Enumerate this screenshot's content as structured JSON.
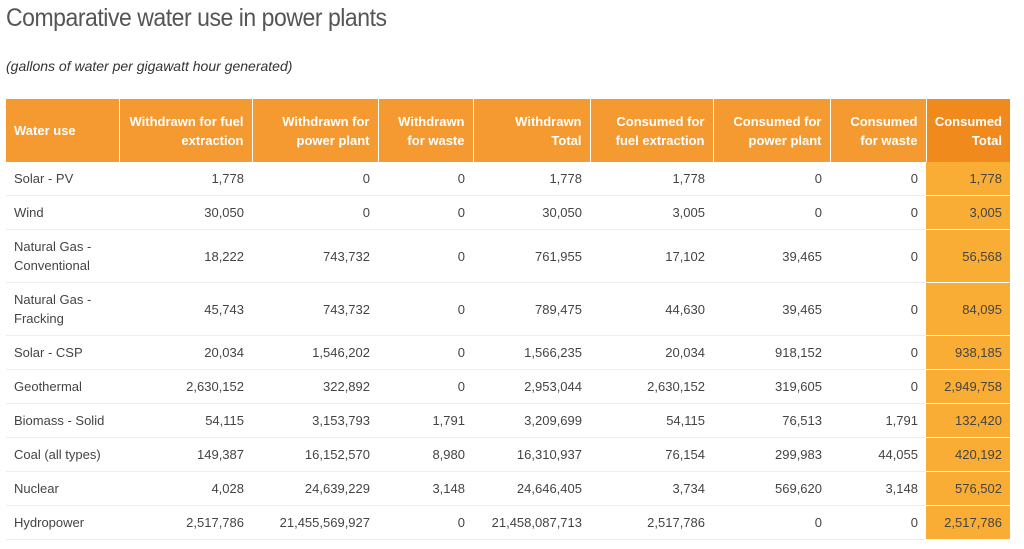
{
  "title": "Comparative water use in power plants",
  "subtitle": "(gallons of water per gigawatt hour generated)",
  "chart_data": {
    "type": "table",
    "columns": [
      "Water use",
      "Withdrawn for fuel extraction",
      "Withdrawn for power plant",
      "Withdrawn for waste",
      "Withdrawn Total",
      "Consumed for fuel extraction",
      "Consumed for power plant",
      "Consumed for waste",
      "Consumed Total"
    ],
    "rows": [
      [
        "Solar - PV",
        "1,778",
        "0",
        "0",
        "1,778",
        "1,778",
        "0",
        "0",
        "1,778"
      ],
      [
        "Wind",
        "30,050",
        "0",
        "0",
        "30,050",
        "3,005",
        "0",
        "0",
        "3,005"
      ],
      [
        "Natural Gas - Conventional",
        "18,222",
        "743,732",
        "0",
        "761,955",
        "17,102",
        "39,465",
        "0",
        "56,568"
      ],
      [
        "Natural Gas - Fracking",
        "45,743",
        "743,732",
        "0",
        "789,475",
        "44,630",
        "39,465",
        "0",
        "84,095"
      ],
      [
        "Solar - CSP",
        "20,034",
        "1,546,202",
        "0",
        "1,566,235",
        "20,034",
        "918,152",
        "0",
        "938,185"
      ],
      [
        "Geothermal",
        "2,630,152",
        "322,892",
        "0",
        "2,953,044",
        "2,630,152",
        "319,605",
        "0",
        "2,949,758"
      ],
      [
        "Biomass - Solid",
        "54,115",
        "3,153,793",
        "1,791",
        "3,209,699",
        "54,115",
        "76,513",
        "1,791",
        "132,420"
      ],
      [
        "Coal (all types)",
        "149,387",
        "16,152,570",
        "8,980",
        "16,310,937",
        "76,154",
        "299,983",
        "44,055",
        "420,192"
      ],
      [
        "Nuclear",
        "4,028",
        "24,639,229",
        "3,148",
        "24,646,405",
        "3,734",
        "569,620",
        "3,148",
        "576,502"
      ],
      [
        "Hydropower",
        "2,517,786",
        "21,455,569,927",
        "0",
        "21,458,087,713",
        "2,517,786",
        "0",
        "0",
        "2,517,786"
      ]
    ]
  },
  "colors": {
    "header": "#f49a30",
    "header_highlight": "#f08a1c",
    "highlight_column": "#f9ad35"
  }
}
